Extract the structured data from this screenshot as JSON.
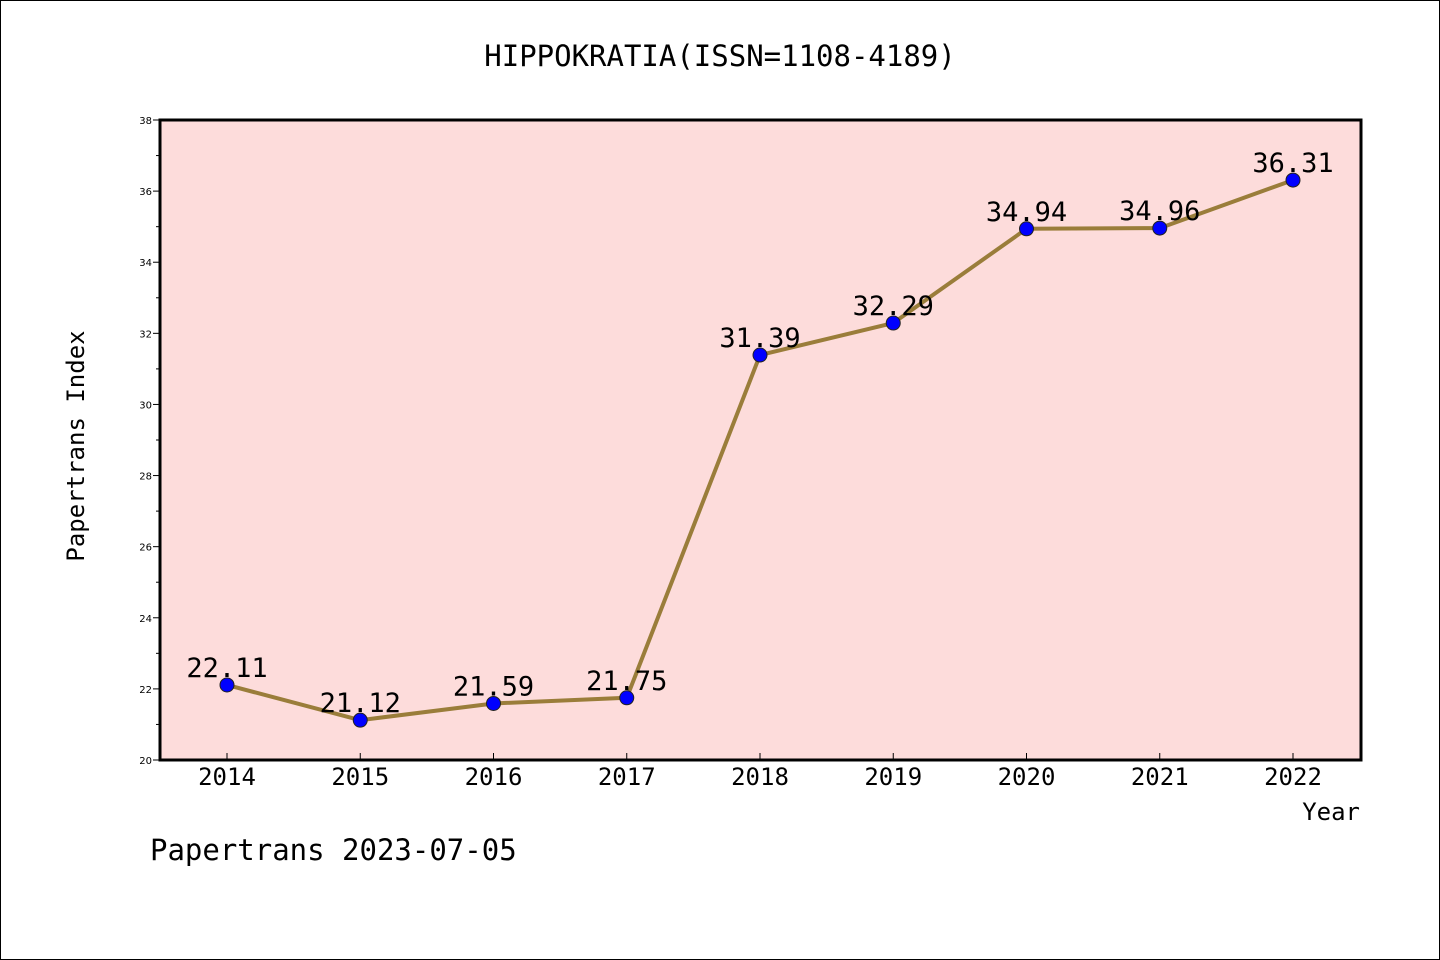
{
  "chart_data": {
    "type": "line",
    "title": "HIPPOKRATIA(ISSN=1108-4189)",
    "xlabel": "Year",
    "ylabel": "Papertrans Index",
    "categories": [
      "2014",
      "2015",
      "2016",
      "2017",
      "2018",
      "2019",
      "2020",
      "2021",
      "2022"
    ],
    "series": [
      {
        "values": [
          22.11,
          21.12,
          21.59,
          21.75,
          31.39,
          32.29,
          34.94,
          34.96,
          36.31
        ],
        "labels": [
          "22.11",
          "21.12",
          "21.59",
          "21.75",
          "31.39",
          "32.29",
          "34.94",
          "34.96",
          "36.31"
        ],
        "line_color": "#9a7d3a",
        "marker_color": "#0000ff"
      }
    ],
    "ylim": [
      20,
      38
    ],
    "yticks": [
      "20",
      "22",
      "24",
      "26",
      "28",
      "30",
      "32",
      "34",
      "36",
      "38"
    ],
    "plot_background": "#fddcdb",
    "grid": false,
    "legend": "none"
  },
  "footer": "Papertrans 2023-07-05"
}
